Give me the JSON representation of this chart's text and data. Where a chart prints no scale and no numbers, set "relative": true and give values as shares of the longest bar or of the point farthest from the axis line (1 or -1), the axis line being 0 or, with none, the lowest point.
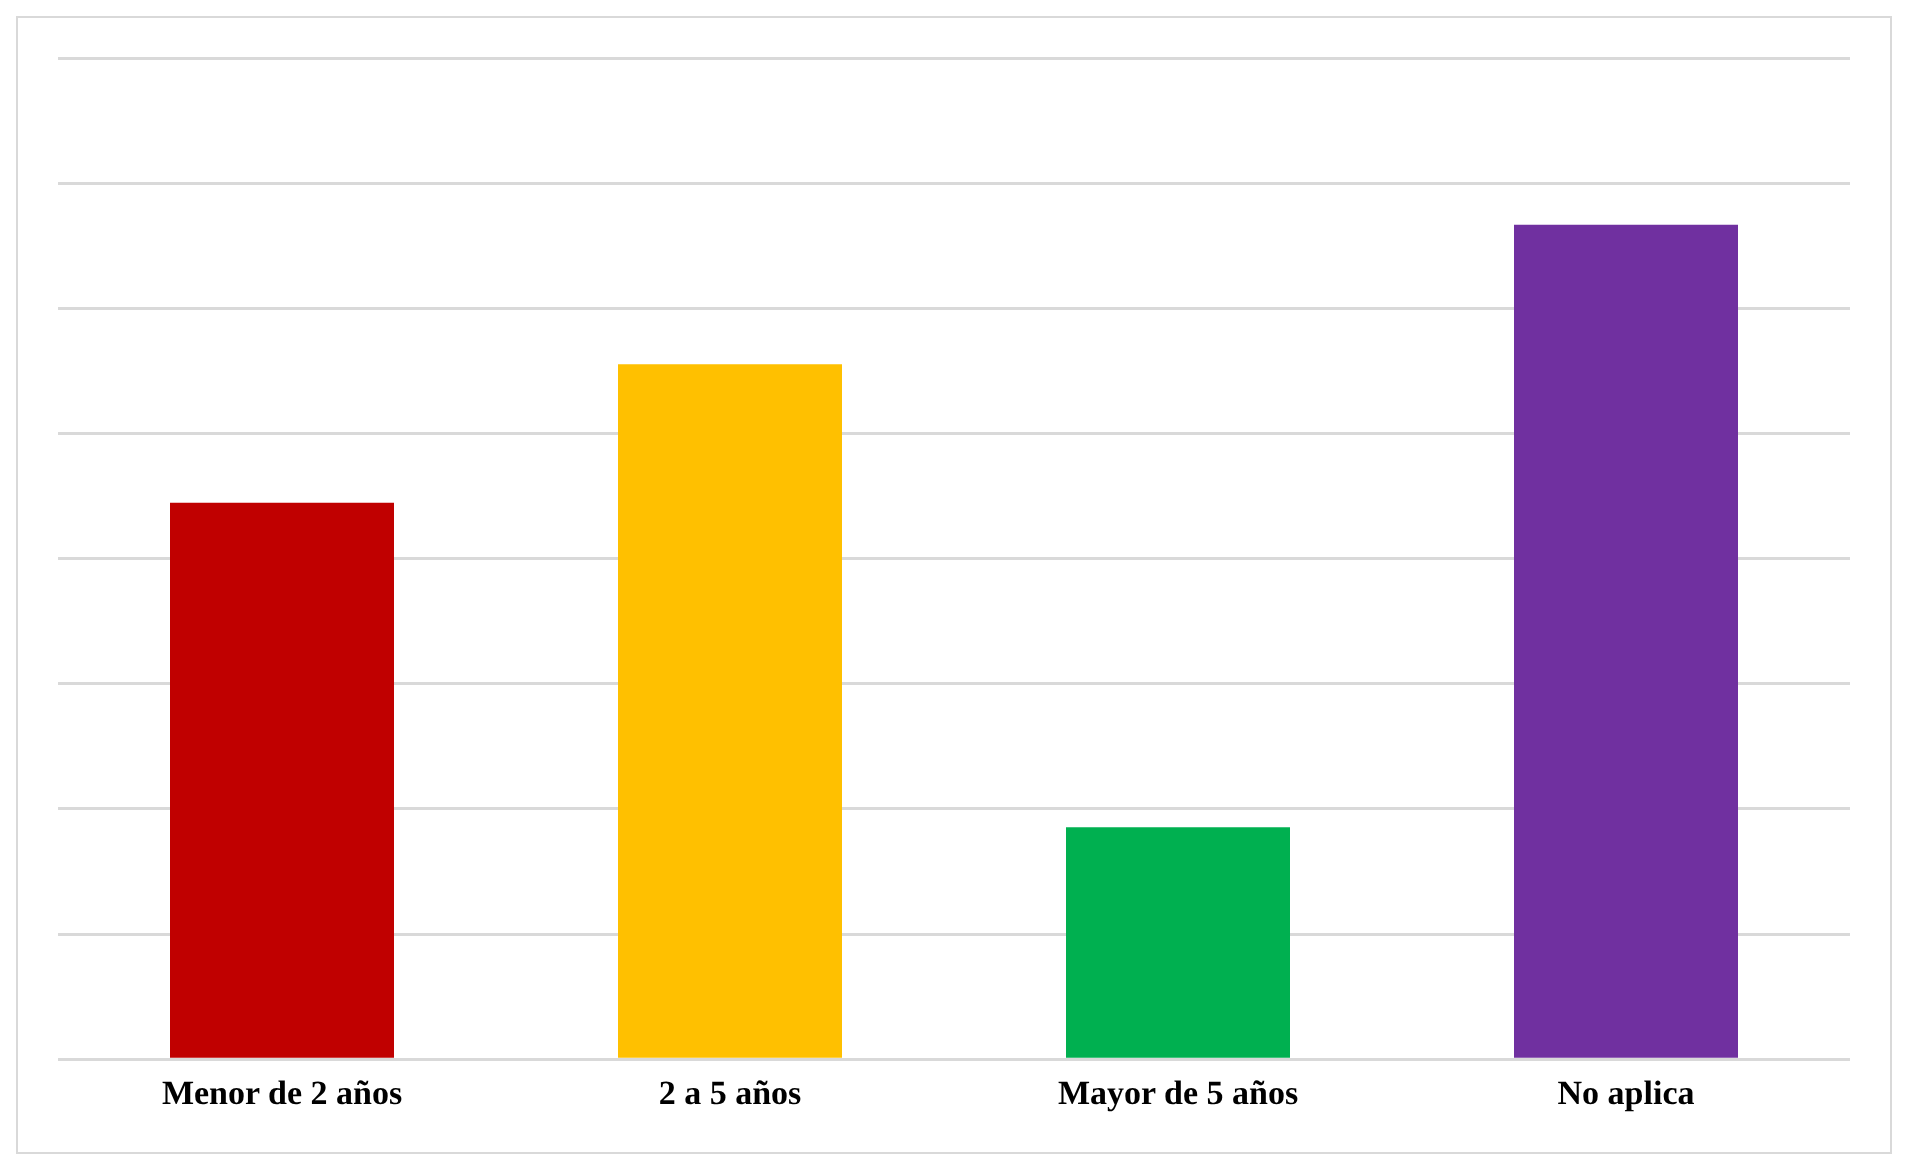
{
  "chart_data": {
    "type": "bar",
    "relative": true,
    "categories": [
      "Menor de 2 años",
      "2 a 5 años",
      "Mayor de 5 años",
      "No aplica"
    ],
    "values": [
      0.667,
      0.833,
      0.278,
      1
    ],
    "colors": [
      "#c00000",
      "#ffc000",
      "#00b050",
      "#7030a0"
    ],
    "grid": "y",
    "legend": false
  }
}
